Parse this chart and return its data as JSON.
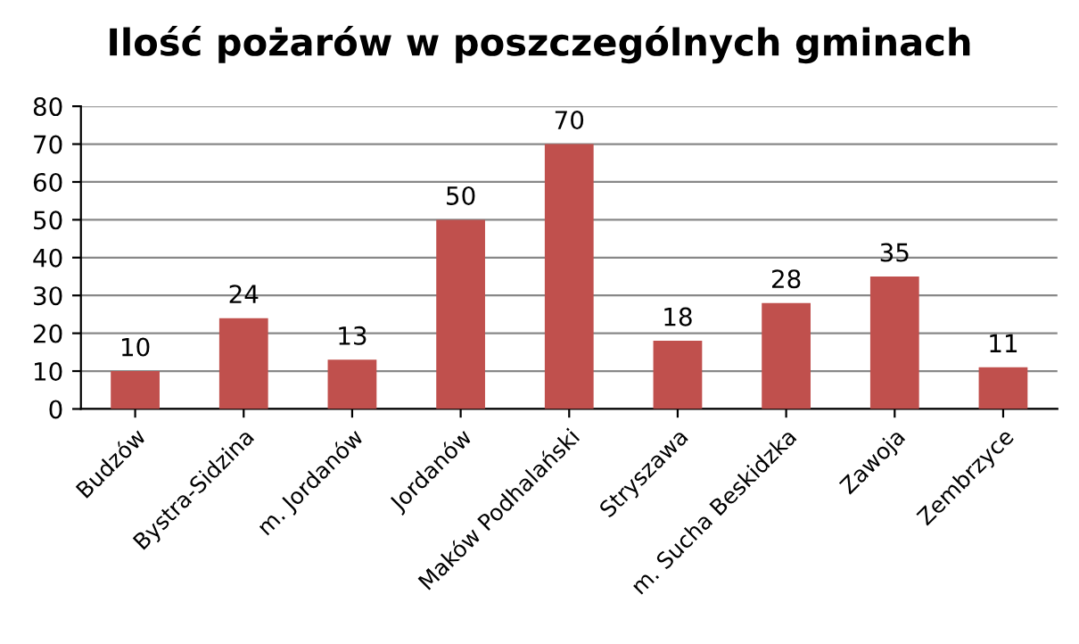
{
  "chart_data": {
    "type": "bar",
    "title": "Ilość pożarów w poszczególnych gminach",
    "categories": [
      "Budzów",
      "Bystra-Sidzina",
      "m. Jordanów",
      "Jordanów",
      "Maków Podhalański",
      "Stryszawa",
      "m. Sucha Beskidzka",
      "Zawoja",
      "Zembrzyce"
    ],
    "values": [
      10,
      24,
      13,
      50,
      70,
      18,
      28,
      35,
      11
    ],
    "color": "#c0504d",
    "ylim": [
      0,
      80
    ],
    "yticks": [
      0,
      10,
      20,
      30,
      40,
      50,
      60,
      70,
      80
    ],
    "grid": "y",
    "data_labels": true,
    "legend": false
  }
}
